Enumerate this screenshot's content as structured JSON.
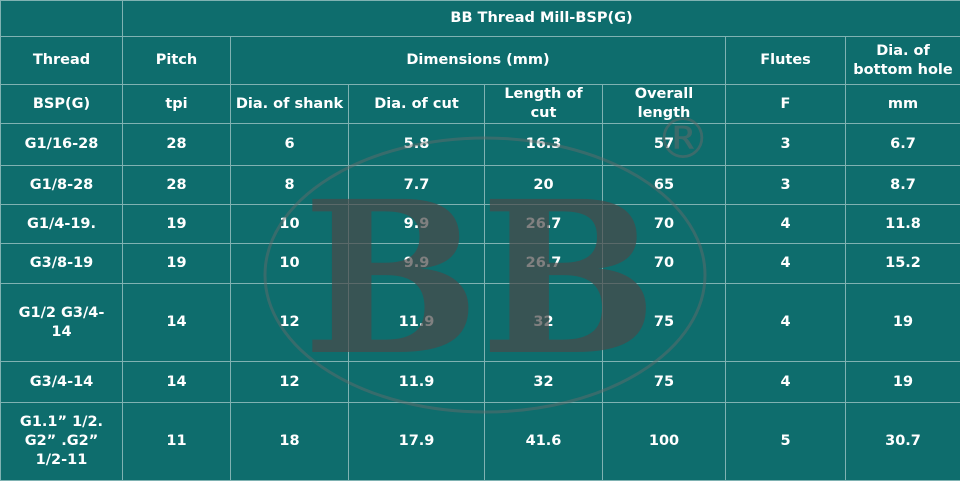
{
  "table": {
    "title": "BB Thread Mill-BSP(G)",
    "header": {
      "thread": "Thread",
      "pitch": "Pitch",
      "dimensions": "Dimensions (mm)",
      "flutes": "Flutes",
      "hole": "Dia. of bottom hole"
    },
    "subheader": [
      "BSP(G)",
      "tpi",
      "Dia. of shank",
      "Dia. of cut",
      "Length of cut",
      "Overall length",
      "F",
      "mm"
    ],
    "rows": [
      [
        "G1/16-28",
        28,
        6,
        5.8,
        16.3,
        57,
        3,
        6.7
      ],
      [
        "G1/8-28",
        28,
        8,
        7.7,
        20,
        65,
        3,
        8.7
      ],
      [
        "G1/4-19.",
        19,
        10,
        9.9,
        26.7,
        70,
        4,
        11.8
      ],
      [
        "G3/8-19",
        19,
        10,
        9.9,
        26.7,
        70,
        4,
        15.2
      ],
      [
        "G1/2 G3/4-14",
        14,
        12,
        11.9,
        32,
        75,
        4,
        19
      ],
      [
        "G3/4-14",
        14,
        12,
        11.9,
        32,
        75,
        4,
        19
      ],
      [
        "G1.1” 1/2. G2” .G2” 1/2-11",
        11,
        18,
        17.9,
        41.6,
        100,
        5,
        30.7
      ]
    ]
  },
  "watermark": {
    "text": "BB",
    "mark": "®"
  }
}
